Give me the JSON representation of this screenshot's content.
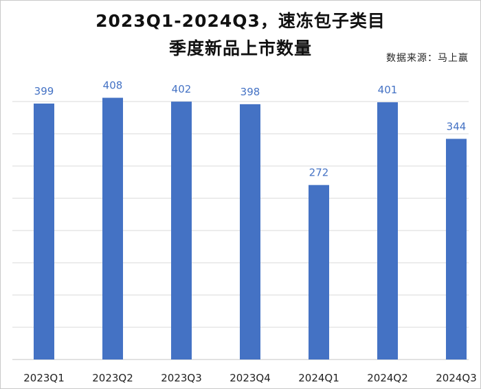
{
  "chart_data": {
    "type": "bar",
    "title_lines": [
      "2023Q1-2024Q3，速冻包子类目",
      "季度新品上市数量"
    ],
    "source": "数据来源：马上赢",
    "categories": [
      "2023Q1",
      "2023Q2",
      "2023Q3",
      "2023Q4",
      "2024Q1",
      "2024Q2",
      "2024Q3"
    ],
    "values": [
      399,
      408,
      402,
      398,
      272,
      401,
      344
    ],
    "value_labels": [
      "399",
      "408",
      "402",
      "398",
      "272",
      "401",
      "344"
    ],
    "xlabel": "",
    "ylabel": "",
    "ylim": [
      0,
      400
    ],
    "y_axis_labels_shown": false,
    "grid": true,
    "bar_color": "#4472C4",
    "label_color": "#4472C4",
    "grid_color": "#d9d9d9"
  }
}
